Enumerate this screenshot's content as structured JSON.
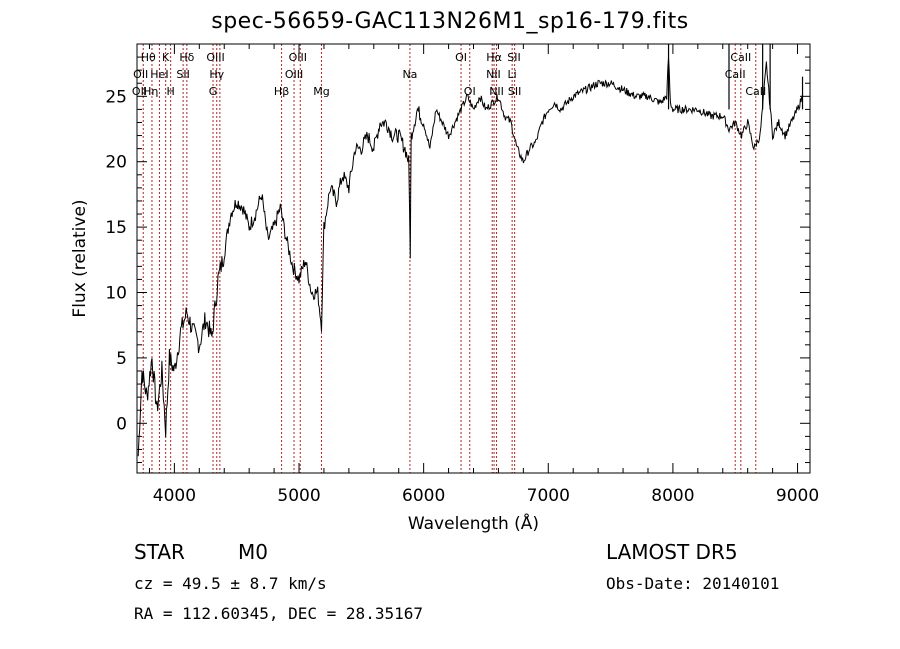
{
  "chart_data": {
    "type": "line",
    "title": "spec-56659-GAC113N26M1_sp16-179.fits",
    "xlabel": "Wavelength (Å)",
    "ylabel": "Flux (relative)",
    "xlim": [
      3700,
      9100
    ],
    "ylim": [
      -3.8,
      29
    ],
    "xticks": [
      4000,
      5000,
      6000,
      7000,
      8000,
      9000
    ],
    "yticks": [
      0,
      5,
      10,
      15,
      20,
      25
    ],
    "grid": false,
    "series": [
      {
        "x": [
          3710,
          3740,
          3780,
          3820,
          3860,
          3900,
          3930,
          3960,
          4000,
          4050,
          4100,
          4150,
          4200,
          4250,
          4300,
          4350,
          4400,
          4450,
          4500,
          4550,
          4600,
          4650,
          4700,
          4750,
          4800,
          4850,
          4900,
          4950,
          5000,
          5050,
          5100,
          5150,
          5180,
          5200,
          5250,
          5300,
          5350,
          5400,
          5450,
          5500,
          5550,
          5600,
          5650,
          5700,
          5750,
          5800,
          5850,
          5880,
          5893,
          5900,
          5950,
          6000,
          6050,
          6100,
          6150,
          6200,
          6250,
          6300,
          6350,
          6400,
          6450,
          6500,
          6550,
          6600,
          6650,
          6700,
          6750,
          6800,
          6850,
          6900,
          6950,
          7000,
          7050,
          7100,
          7150,
          7200,
          7300,
          7400,
          7500,
          7600,
          7700,
          7800,
          7900,
          7950,
          7965,
          7980,
          8000,
          8100,
          8200,
          8300,
          8400,
          8450,
          8500,
          8550,
          8600,
          8650,
          8700,
          8750,
          8800,
          8850,
          8900,
          8950,
          9000,
          9040
        ],
        "y": [
          -2.5,
          4,
          2,
          5,
          1,
          4,
          -0.5,
          5,
          4,
          7,
          8.5,
          7,
          6,
          8,
          6.5,
          11,
          13,
          16,
          17,
          16.5,
          15,
          16,
          17.5,
          14,
          15,
          16.5,
          14,
          12,
          11,
          12.5,
          10,
          10,
          7.5,
          15,
          18,
          17,
          19,
          18,
          21,
          21,
          22,
          21,
          23,
          23,
          22,
          22,
          21,
          20,
          13,
          22,
          24,
          23,
          21,
          24,
          23,
          22,
          23,
          24,
          25,
          24,
          25,
          24,
          24.5,
          25,
          23.5,
          23,
          21,
          20,
          21,
          21.5,
          23,
          24,
          24.5,
          24,
          24.5,
          25,
          25.5,
          26,
          26,
          25.5,
          25,
          25,
          24.5,
          25,
          28,
          24.5,
          24,
          24,
          24,
          23.5,
          23.5,
          22.5,
          23,
          22,
          23,
          21,
          22,
          27.5,
          22,
          23,
          22,
          23,
          24,
          25
        ],
        "spikes": [
          {
            "x": 7965,
            "y": 29
          },
          {
            "x": 8450,
            "y": 29
          },
          {
            "x": 8720,
            "y": 29
          },
          {
            "x": 8780,
            "y": 29
          },
          {
            "x": 9040,
            "y": 26.5
          }
        ]
      }
    ],
    "line_markers": {
      "color": "#b22222",
      "positions": [
        3750,
        3820,
        3880,
        3930,
        3970,
        4070,
        4100,
        4310,
        4340,
        4365,
        4860,
        4960,
        5010,
        5180,
        5890,
        6300,
        6370,
        6550,
        6565,
        6585,
        6710,
        6730,
        8500,
        8545,
        8665
      ],
      "labels": [
        {
          "text": "Hθ",
          "x": 3790,
          "row": 1
        },
        {
          "text": "K",
          "x": 3930,
          "row": 1
        },
        {
          "text": "Hδ",
          "x": 4100,
          "row": 1
        },
        {
          "text": "OIII",
          "x": 4330,
          "row": 1
        },
        {
          "text": "OIII",
          "x": 4990,
          "row": 1
        },
        {
          "text": "OI",
          "x": 6300,
          "row": 1
        },
        {
          "text": "Hα",
          "x": 6565,
          "row": 1
        },
        {
          "text": "SII",
          "x": 6725,
          "row": 1
        },
        {
          "text": "CaII",
          "x": 8545,
          "row": 1
        },
        {
          "text": "OII",
          "x": 3730,
          "row": 2
        },
        {
          "text": "HeI",
          "x": 3880,
          "row": 2
        },
        {
          "text": "SII",
          "x": 4070,
          "row": 2
        },
        {
          "text": "Hγ",
          "x": 4340,
          "row": 2
        },
        {
          "text": "OIII",
          "x": 4960,
          "row": 2
        },
        {
          "text": "Na",
          "x": 5890,
          "row": 2
        },
        {
          "text": "NII",
          "x": 6560,
          "row": 2
        },
        {
          "text": "Li",
          "x": 6710,
          "row": 2
        },
        {
          "text": "CaII",
          "x": 8500,
          "row": 2
        },
        {
          "text": "OII",
          "x": 3720,
          "row": 3
        },
        {
          "text": "Hη",
          "x": 3810,
          "row": 3
        },
        {
          "text": "H",
          "x": 3970,
          "row": 3
        },
        {
          "text": "G",
          "x": 4310,
          "row": 3
        },
        {
          "text": "Hβ",
          "x": 4860,
          "row": 3
        },
        {
          "text": "Mg",
          "x": 5180,
          "row": 3
        },
        {
          "text": "OI",
          "x": 6370,
          "row": 3
        },
        {
          "text": "NII",
          "x": 6585,
          "row": 3
        },
        {
          "text": "SII",
          "x": 6730,
          "row": 3
        },
        {
          "text": "CaII",
          "x": 8665,
          "row": 3
        }
      ]
    }
  },
  "info": {
    "star_type": "STAR",
    "subclass": "M0",
    "survey": "LAMOST DR5",
    "cz": "cz = 49.5 ± 8.7 km/s",
    "obs_date": "Obs-Date: 20140101",
    "radec": "RA = 112.60345, DEC =  28.35167"
  }
}
